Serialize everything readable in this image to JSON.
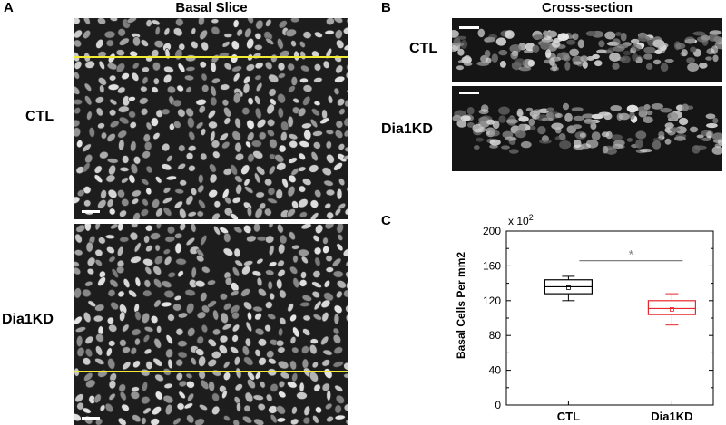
{
  "panels": {
    "a": {
      "letter": "A",
      "title": "Basal Slice",
      "rows": [
        "CTL",
        "Dia1KD"
      ]
    },
    "b": {
      "letter": "B",
      "title": "Cross-section",
      "rows": [
        "CTL",
        "Dia1KD"
      ]
    },
    "c": {
      "letter": "C"
    }
  },
  "colors": {
    "guide_line": "#f2ea34",
    "scale_bar": "#ffffff",
    "ctl_box": "#000000",
    "kd_box": "#e8262b",
    "significance_bar": "#808080"
  },
  "chart_data": {
    "type": "box",
    "categories": [
      "CTL",
      "Dia1KD"
    ],
    "ylabel": "Basal Cells Per mm2",
    "ylim": [
      0,
      200
    ],
    "yticks": [
      0,
      40,
      80,
      120,
      160,
      200
    ],
    "multiplier_label": "x 10",
    "multiplier_exponent": "2",
    "boxes": [
      {
        "name": "CTL",
        "whisker_low": 120,
        "q1": 128,
        "median": 136,
        "mean": 135,
        "q3": 144,
        "whisker_high": 148,
        "color": "#000000"
      },
      {
        "name": "Dia1KD",
        "whisker_low": 92,
        "q1": 104,
        "median": 111,
        "mean": 110,
        "q3": 120,
        "whisker_high": 128,
        "color": "#e8262b"
      }
    ],
    "significance": {
      "from": "CTL",
      "to": "Dia1KD",
      "symbol": "*"
    }
  }
}
